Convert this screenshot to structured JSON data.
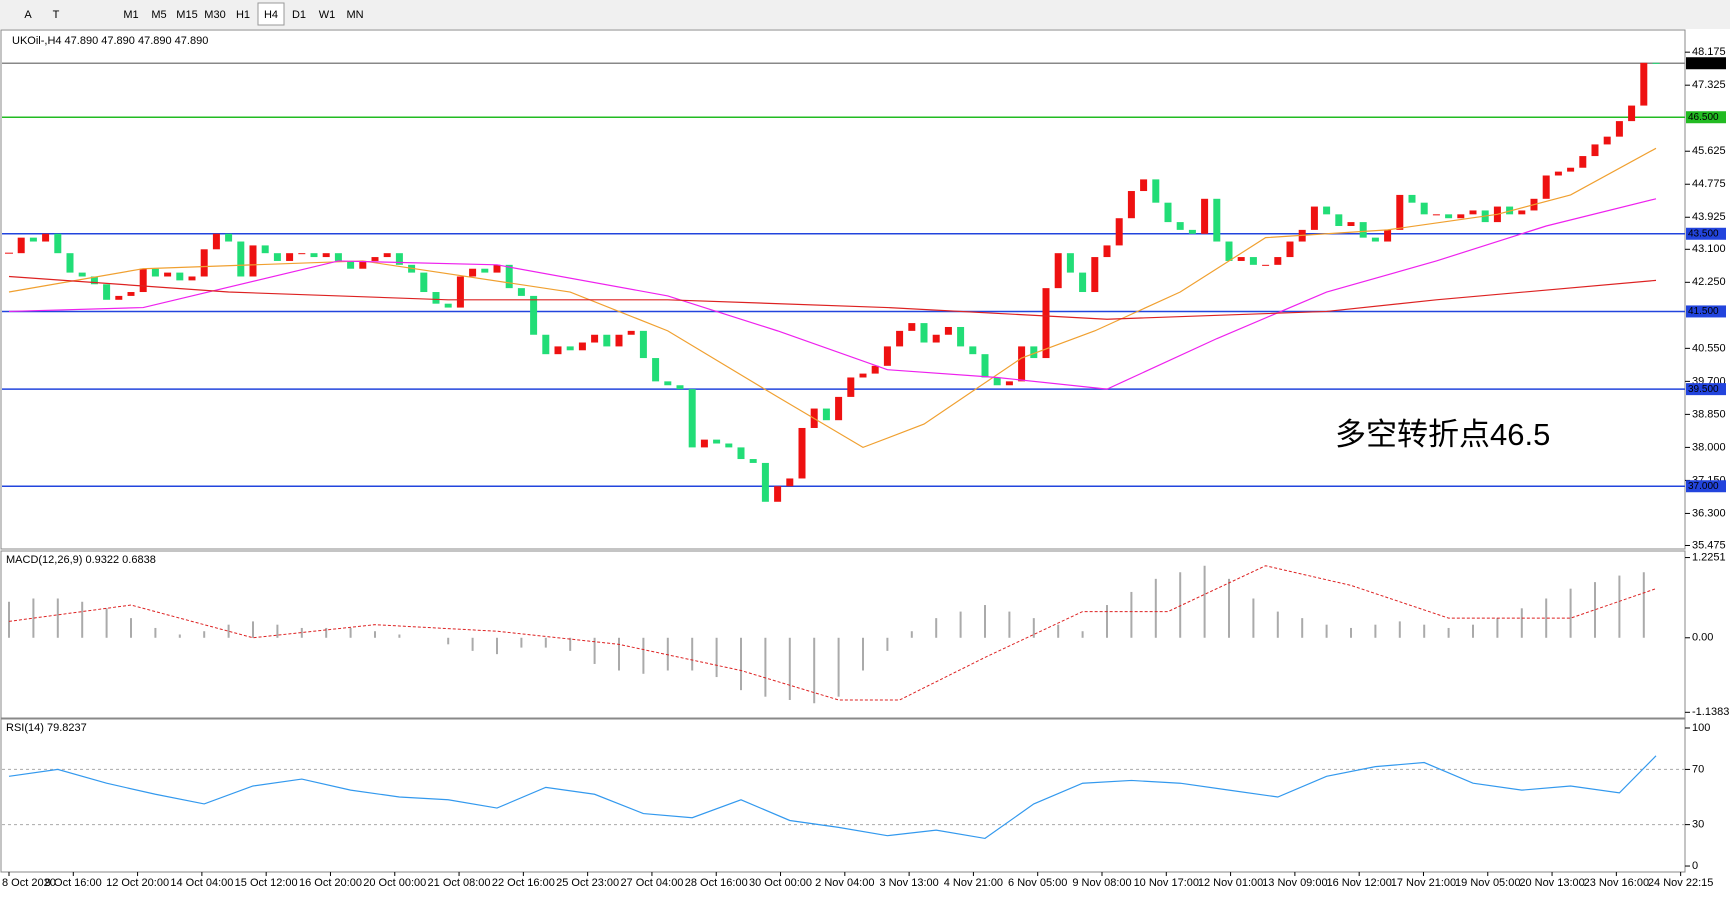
{
  "toolbar": {
    "tools": [
      "A",
      "T"
    ],
    "timeframes": [
      "M1",
      "M5",
      "M15",
      "M30",
      "H1",
      "H4",
      "D1",
      "W1",
      "MN"
    ],
    "active": "H4"
  },
  "chart_data": [
    {
      "type": "candlestick",
      "title": "UKOil-,H4 47.890 47.890 47.890 47.890",
      "closes": [
        43.0,
        43.4,
        43.3,
        43.5,
        43.0,
        42.5,
        42.4,
        42.2,
        41.8,
        41.9,
        42.0,
        42.6,
        42.4,
        42.5,
        42.3,
        42.4,
        43.1,
        43.5,
        43.3,
        42.4,
        43.2,
        43.0,
        42.8,
        43.0,
        43.0,
        42.9,
        43.0,
        42.8,
        42.6,
        42.8,
        42.9,
        43.0,
        42.7,
        42.5,
        42.0,
        41.7,
        41.6,
        42.4,
        42.6,
        42.5,
        42.7,
        42.1,
        41.9,
        40.9,
        40.4,
        40.6,
        40.5,
        40.7,
        40.9,
        40.6,
        40.9,
        41.0,
        40.3,
        39.7,
        39.6,
        39.5,
        38.0,
        38.2,
        38.1,
        38.0,
        37.7,
        37.6,
        36.6,
        37.0,
        37.2,
        38.5,
        39.0,
        38.7,
        39.3,
        39.8,
        39.9,
        40.1,
        40.6,
        41.0,
        41.2,
        40.7,
        40.9,
        41.1,
        40.6,
        40.4,
        39.8,
        39.6,
        39.7,
        40.6,
        40.3,
        42.1,
        43.0,
        42.5,
        42.0,
        42.9,
        43.2,
        43.9,
        44.6,
        44.9,
        44.3,
        43.8,
        43.6,
        43.5,
        44.4,
        43.3,
        42.8,
        42.9,
        42.7,
        42.7,
        42.9,
        43.3,
        43.6,
        44.2,
        44.0,
        43.7,
        43.8,
        43.4,
        43.3,
        43.6,
        44.5,
        44.3,
        44.0,
        44.0,
        43.9,
        44.0,
        44.1,
        43.8,
        44.2,
        44.0,
        44.1,
        44.4,
        45.0,
        45.1,
        45.2,
        45.5,
        45.8,
        46.0,
        46.4,
        46.8,
        47.9,
        47.89
      ],
      "up_color": "#ee1111",
      "down_color": "#22dd77",
      "ylim": [
        35.41,
        48.72
      ],
      "yticks": [
        {
          "value": 48.175,
          "label": "48.175"
        },
        {
          "value": 47.325,
          "label": "47.325"
        },
        {
          "value": 45.625,
          "label": "45.625"
        },
        {
          "value": 44.775,
          "label": "44.775"
        },
        {
          "value": 43.925,
          "label": "43.925"
        },
        {
          "value": 43.1,
          "label": "43.100"
        },
        {
          "value": 42.25,
          "label": "42.250"
        },
        {
          "value": 40.55,
          "label": "40.550"
        },
        {
          "value": 39.7,
          "label": "39.700"
        },
        {
          "value": 38.85,
          "label": "38.850"
        },
        {
          "value": 38.0,
          "label": "38.000"
        },
        {
          "value": 37.15,
          "label": "37.150"
        },
        {
          "value": 36.3,
          "label": "36.300"
        },
        {
          "value": 35.475,
          "label": "35.475"
        }
      ],
      "levels": [
        {
          "value": 47.89,
          "label": "47.890",
          "color": "#888888",
          "box": "#000000"
        },
        {
          "value": 46.5,
          "label": "46.500",
          "color": "#22bb22",
          "box": "#22bb22"
        },
        {
          "value": 43.5,
          "label": "43.500",
          "color": "#2244dd",
          "box": "#2244dd"
        },
        {
          "value": 41.5,
          "label": "41.500",
          "color": "#2244dd",
          "box": "#2244dd"
        },
        {
          "value": 39.5,
          "label": "39.500",
          "color": "#2244dd",
          "box": "#2244dd"
        },
        {
          "value": 37.0,
          "label": "37.000",
          "color": "#2244dd",
          "box": "#2244dd"
        }
      ],
      "series": [
        {
          "color": "#f0a030",
          "x": [
            0,
            11,
            29,
            46,
            54,
            63,
            70,
            75,
            83,
            89,
            96,
            103,
            113,
            122,
            128,
            135
          ],
          "values": [
            42.0,
            42.6,
            42.8,
            42.0,
            41.0,
            39.3,
            38.0,
            38.6,
            40.3,
            41.0,
            42.0,
            43.4,
            43.6,
            44.0,
            44.5,
            45.7
          ]
        },
        {
          "color": "#ee22ee",
          "x": [
            0,
            11,
            27,
            40,
            54,
            63,
            72,
            81,
            90,
            99,
            108,
            117,
            126,
            135
          ],
          "values": [
            41.5,
            41.6,
            42.8,
            42.7,
            41.9,
            41.0,
            40.0,
            39.8,
            39.5,
            40.8,
            42.0,
            42.8,
            43.7,
            44.4
          ]
        },
        {
          "color": "#dd2222",
          "x": [
            0,
            18,
            36,
            54,
            72,
            90,
            108,
            117,
            135
          ],
          "values": [
            42.4,
            42.0,
            41.8,
            41.8,
            41.6,
            41.3,
            41.5,
            41.8,
            42.3
          ]
        }
      ],
      "annotation": "多空转折点46.5",
      "time_labels": [
        "8 Oct 2020",
        "9 Oct 16:00",
        "12 Oct 20:00",
        "14 Oct 04:00",
        "15 Oct 12:00",
        "16 Oct 20:00",
        "20 Oct 00:00",
        "21 Oct 08:00",
        "22 Oct 16:00",
        "25 Oct 23:00",
        "27 Oct 04:00",
        "28 Oct 16:00",
        "30 Oct 00:00",
        "2 Nov 04:00",
        "3 Nov 13:00",
        "4 Nov 21:00",
        "6 Nov 05:00",
        "9 Nov 08:00",
        "10 Nov 17:00",
        "12 Nov 01:00",
        "13 Nov 09:00",
        "16 Nov 12:00",
        "17 Nov 21:00",
        "19 Nov 05:00",
        "20 Nov 13:00",
        "23 Nov 16:00",
        "24 Nov 22:15"
      ]
    },
    {
      "type": "macd",
      "title": "MACD(12,26,9) 0.9322 0.6838",
      "ylim": [
        -1.21,
        1.31
      ],
      "yticks": [
        1.2251,
        {
          "value": 0,
          "label": "0.00"
        },
        -1.1383
      ],
      "hist_color": "#aaaaaa",
      "signal_color": "#dd2222",
      "x": [
        0,
        2,
        4,
        6,
        8,
        10,
        12,
        14,
        16,
        18,
        20,
        22,
        24,
        26,
        28,
        30,
        32,
        34,
        36,
        38,
        40,
        42,
        44,
        46,
        48,
        50,
        52,
        54,
        56,
        58,
        60,
        62,
        64,
        66,
        68,
        70,
        72,
        74,
        76,
        78,
        80,
        82,
        84,
        86,
        88,
        90,
        92,
        94,
        96,
        98,
        100,
        102,
        104,
        106,
        108,
        110,
        112,
        114,
        116,
        118,
        120,
        122,
        124,
        126,
        128,
        130,
        132,
        134
      ],
      "values": [
        0.55,
        0.6,
        0.6,
        0.55,
        0.45,
        0.3,
        0.15,
        0.05,
        0.1,
        0.2,
        0.25,
        0.2,
        0.15,
        0.15,
        0.15,
        0.1,
        0.05,
        0.0,
        -0.1,
        -0.2,
        -0.25,
        -0.15,
        -0.15,
        -0.2,
        -0.4,
        -0.5,
        -0.55,
        -0.5,
        -0.5,
        -0.6,
        -0.8,
        -0.9,
        -0.95,
        -1.0,
        -0.9,
        -0.5,
        -0.2,
        0.1,
        0.3,
        0.4,
        0.5,
        0.4,
        0.3,
        0.2,
        0.1,
        0.5,
        0.7,
        0.9,
        1.0,
        1.1,
        0.9,
        0.6,
        0.4,
        0.3,
        0.2,
        0.15,
        0.2,
        0.25,
        0.2,
        0.15,
        0.2,
        0.3,
        0.45,
        0.6,
        0.75,
        0.85,
        0.95,
        1.0
      ],
      "signal_x": [
        0,
        10,
        20,
        30,
        40,
        50,
        60,
        68,
        73,
        80,
        88,
        95,
        103,
        110,
        118,
        128,
        135
      ],
      "signal": [
        0.25,
        0.5,
        0.0,
        0.2,
        0.1,
        -0.1,
        -0.5,
        -0.95,
        -0.95,
        -0.3,
        0.4,
        0.4,
        1.1,
        0.8,
        0.3,
        0.3,
        0.75
      ]
    },
    {
      "type": "rsi",
      "title": "RSI(14) 79.8237",
      "ylim": [
        -3.6,
        105.8
      ],
      "yticks": [
        100,
        70,
        30,
        0
      ],
      "levels": [
        70,
        30
      ],
      "color": "#3399ee",
      "x": [
        0,
        4,
        8,
        12,
        16,
        20,
        24,
        28,
        32,
        36,
        40,
        44,
        48,
        52,
        56,
        60,
        64,
        68,
        72,
        76,
        80,
        84,
        88,
        92,
        96,
        100,
        104,
        108,
        112,
        116,
        120,
        124,
        128,
        132,
        135
      ],
      "values": [
        65,
        70,
        60,
        52,
        45,
        58,
        63,
        55,
        50,
        48,
        42,
        57,
        52,
        38,
        35,
        48,
        33,
        28,
        22,
        26,
        20,
        45,
        60,
        62,
        60,
        55,
        50,
        65,
        72,
        75,
        60,
        55,
        58,
        53,
        79.82
      ]
    }
  ]
}
